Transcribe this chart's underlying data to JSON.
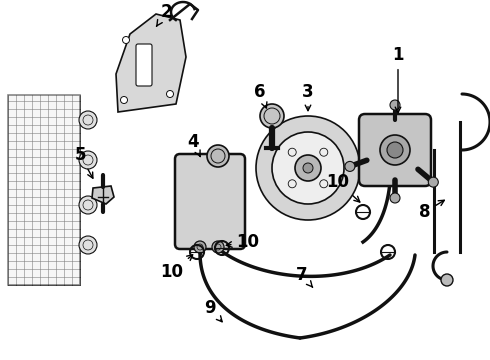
{
  "bg_color": "#ffffff",
  "line_color": "#111111",
  "fig_width": 4.9,
  "fig_height": 3.6,
  "dpi": 100
}
